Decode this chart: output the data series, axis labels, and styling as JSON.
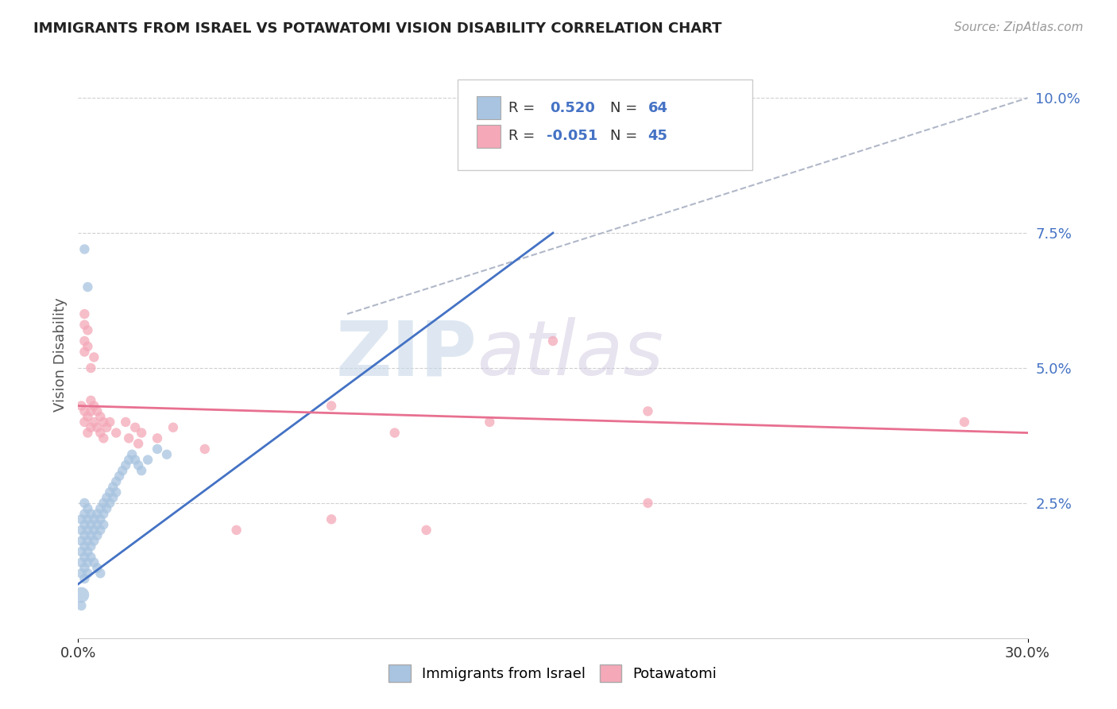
{
  "title": "IMMIGRANTS FROM ISRAEL VS POTAWATOMI VISION DISABILITY CORRELATION CHART",
  "source": "Source: ZipAtlas.com",
  "ylabel": "Vision Disability",
  "xlim": [
    0,
    0.3
  ],
  "ylim": [
    0.0,
    0.105
  ],
  "yticks": [
    0.025,
    0.05,
    0.075,
    0.1
  ],
  "ytick_labels": [
    "2.5%",
    "5.0%",
    "7.5%",
    "10.0%"
  ],
  "legend_label1": "Immigrants from Israel",
  "legend_label2": "Potawatomi",
  "blue_color": "#a8c4e0",
  "pink_color": "#f4a8b8",
  "blue_line_color": "#4472c4",
  "pink_line_color": "#e87090",
  "blue_scatter": [
    [
      0.001,
      0.02
    ],
    [
      0.001,
      0.018
    ],
    [
      0.001,
      0.016
    ],
    [
      0.001,
      0.022
    ],
    [
      0.002,
      0.021
    ],
    [
      0.002,
      0.019
    ],
    [
      0.002,
      0.017
    ],
    [
      0.002,
      0.015
    ],
    [
      0.002,
      0.023
    ],
    [
      0.002,
      0.025
    ],
    [
      0.003,
      0.022
    ],
    [
      0.003,
      0.02
    ],
    [
      0.003,
      0.018
    ],
    [
      0.003,
      0.016
    ],
    [
      0.003,
      0.024
    ],
    [
      0.004,
      0.021
    ],
    [
      0.004,
      0.019
    ],
    [
      0.004,
      0.017
    ],
    [
      0.004,
      0.023
    ],
    [
      0.005,
      0.022
    ],
    [
      0.005,
      0.02
    ],
    [
      0.005,
      0.018
    ],
    [
      0.006,
      0.023
    ],
    [
      0.006,
      0.021
    ],
    [
      0.006,
      0.019
    ],
    [
      0.007,
      0.024
    ],
    [
      0.007,
      0.022
    ],
    [
      0.007,
      0.02
    ],
    [
      0.008,
      0.025
    ],
    [
      0.008,
      0.023
    ],
    [
      0.008,
      0.021
    ],
    [
      0.009,
      0.026
    ],
    [
      0.009,
      0.024
    ],
    [
      0.01,
      0.027
    ],
    [
      0.01,
      0.025
    ],
    [
      0.011,
      0.028
    ],
    [
      0.011,
      0.026
    ],
    [
      0.012,
      0.029
    ],
    [
      0.012,
      0.027
    ],
    [
      0.013,
      0.03
    ],
    [
      0.014,
      0.031
    ],
    [
      0.015,
      0.032
    ],
    [
      0.016,
      0.033
    ],
    [
      0.017,
      0.034
    ],
    [
      0.018,
      0.033
    ],
    [
      0.019,
      0.032
    ],
    [
      0.02,
      0.031
    ],
    [
      0.022,
      0.033
    ],
    [
      0.025,
      0.035
    ],
    [
      0.028,
      0.034
    ],
    [
      0.001,
      0.014
    ],
    [
      0.001,
      0.012
    ],
    [
      0.002,
      0.013
    ],
    [
      0.002,
      0.011
    ],
    [
      0.003,
      0.014
    ],
    [
      0.003,
      0.012
    ],
    [
      0.004,
      0.015
    ],
    [
      0.005,
      0.014
    ],
    [
      0.006,
      0.013
    ],
    [
      0.007,
      0.012
    ],
    [
      0.002,
      0.072
    ],
    [
      0.003,
      0.065
    ],
    [
      0.001,
      0.008
    ],
    [
      0.001,
      0.006
    ]
  ],
  "blue_scatter_sizes": [
    80,
    80,
    80,
    80,
    80,
    80,
    80,
    80,
    80,
    80,
    80,
    80,
    80,
    80,
    80,
    80,
    80,
    80,
    80,
    80,
    80,
    80,
    80,
    80,
    80,
    80,
    80,
    80,
    80,
    80,
    80,
    80,
    80,
    80,
    80,
    80,
    80,
    80,
    80,
    80,
    80,
    80,
    80,
    80,
    80,
    80,
    80,
    80,
    80,
    80,
    80,
    80,
    80,
    80,
    80,
    80,
    80,
    80,
    80,
    80,
    80,
    80,
    200,
    80
  ],
  "pink_scatter": [
    [
      0.001,
      0.043
    ],
    [
      0.002,
      0.042
    ],
    [
      0.002,
      0.04
    ],
    [
      0.003,
      0.041
    ],
    [
      0.003,
      0.038
    ],
    [
      0.004,
      0.044
    ],
    [
      0.004,
      0.042
    ],
    [
      0.004,
      0.039
    ],
    [
      0.005,
      0.043
    ],
    [
      0.005,
      0.04
    ],
    [
      0.006,
      0.042
    ],
    [
      0.006,
      0.039
    ],
    [
      0.007,
      0.041
    ],
    [
      0.007,
      0.038
    ],
    [
      0.008,
      0.04
    ],
    [
      0.008,
      0.037
    ],
    [
      0.009,
      0.039
    ],
    [
      0.01,
      0.04
    ],
    [
      0.012,
      0.038
    ],
    [
      0.015,
      0.04
    ],
    [
      0.016,
      0.037
    ],
    [
      0.018,
      0.039
    ],
    [
      0.019,
      0.036
    ],
    [
      0.02,
      0.038
    ],
    [
      0.025,
      0.037
    ],
    [
      0.03,
      0.039
    ],
    [
      0.04,
      0.035
    ],
    [
      0.002,
      0.06
    ],
    [
      0.003,
      0.057
    ],
    [
      0.003,
      0.054
    ],
    [
      0.002,
      0.053
    ],
    [
      0.002,
      0.055
    ],
    [
      0.002,
      0.058
    ],
    [
      0.004,
      0.05
    ],
    [
      0.005,
      0.052
    ],
    [
      0.08,
      0.043
    ],
    [
      0.13,
      0.04
    ],
    [
      0.18,
      0.042
    ],
    [
      0.28,
      0.04
    ],
    [
      0.15,
      0.055
    ],
    [
      0.1,
      0.038
    ],
    [
      0.05,
      0.02
    ],
    [
      0.08,
      0.022
    ],
    [
      0.11,
      0.02
    ],
    [
      0.18,
      0.025
    ]
  ],
  "blue_line": [
    [
      0.0,
      0.01
    ],
    [
      0.15,
      0.075
    ]
  ],
  "pink_line": [
    [
      0.0,
      0.043
    ],
    [
      0.3,
      0.038
    ]
  ],
  "gray_dash_line": [
    [
      0.085,
      0.06
    ],
    [
      0.3,
      0.1
    ]
  ],
  "watermark_zip": "ZIP",
  "watermark_atlas": "atlas",
  "background_color": "#ffffff",
  "grid_color": "#d0d0d0"
}
